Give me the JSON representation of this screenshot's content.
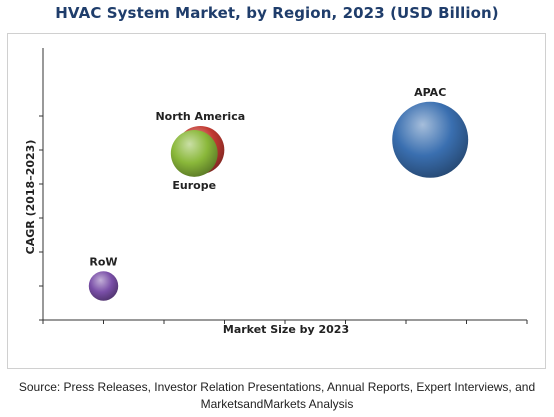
{
  "chart_data": {
    "type": "scatter",
    "variant": "bubble",
    "title": "HVAC System Market, by Region, 2023 (USD Billion)",
    "xlabel": "Market Size by 2023",
    "ylabel": "CAGR (2018–2023)",
    "xlim": [
      0,
      8
    ],
    "ylim": [
      0,
      8
    ],
    "x_ticks": [
      0,
      1,
      2,
      3,
      4,
      5,
      6,
      7,
      8
    ],
    "y_ticks": [
      0,
      1,
      2,
      3,
      4,
      5,
      6
    ],
    "tick_labels_shown": false,
    "grid": false,
    "legend": "none",
    "series": [
      {
        "name": "APAC",
        "x": 6.4,
        "y": 5.3,
        "size": 1.0,
        "color": "#3a6fb0"
      },
      {
        "name": "North America",
        "x": 2.6,
        "y": 5.0,
        "size": 0.4,
        "color": "#c23a32"
      },
      {
        "name": "Europe",
        "x": 2.5,
        "y": 4.9,
        "size": 0.38,
        "color": "#8ab83a"
      },
      {
        "name": "RoW",
        "x": 1.0,
        "y": 1.0,
        "size": 0.15,
        "color": "#7a4fa8"
      }
    ]
  },
  "source_text": "Source: Press Releases, Investor Relation Presentations, Annual Reports, Expert Interviews, and MarketsandMarkets Analysis"
}
